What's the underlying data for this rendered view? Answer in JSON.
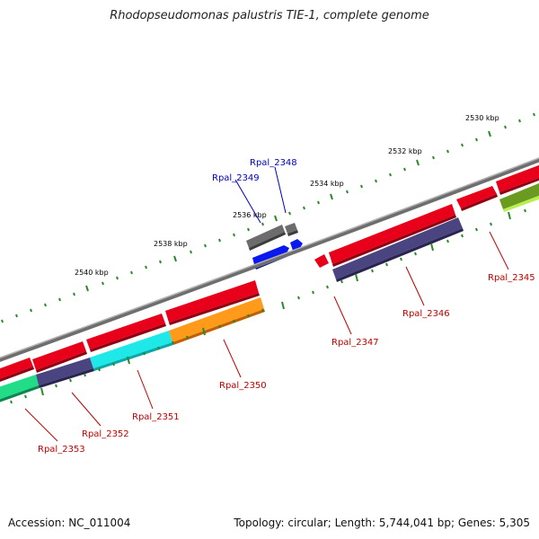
{
  "title": "Rhodopseudomonas palustris TIE-1, complete genome",
  "footer": {
    "accession": "Accession: NC_011004",
    "topology": "Topology: circular; Length: 5,744,041 bp; Genes: 5,305"
  },
  "kbp_labels": [
    "2530 kbp",
    "2532 kbp",
    "2534 kbp",
    "2536 kbp",
    "2538 kbp",
    "2540 kbp"
  ],
  "genes_below": [
    "Rpal_2345",
    "Rpal_2346",
    "Rpal_2347",
    "Rpal_2350",
    "Rpal_2351",
    "Rpal_2352",
    "Rpal_2353"
  ],
  "genes_above": [
    "Rpal_2348",
    "Rpal_2349"
  ],
  "colors": {
    "red": "#e8001a",
    "slate": "#4a4580",
    "cyan": "#1fe8e8",
    "orange": "#ff9a1a",
    "green": "#22dd88",
    "lime": "#9acc30",
    "grey": "#707070",
    "blue": "#0a1aee",
    "backbone": "#8a8a8a",
    "tick": "#2a8a2a"
  }
}
